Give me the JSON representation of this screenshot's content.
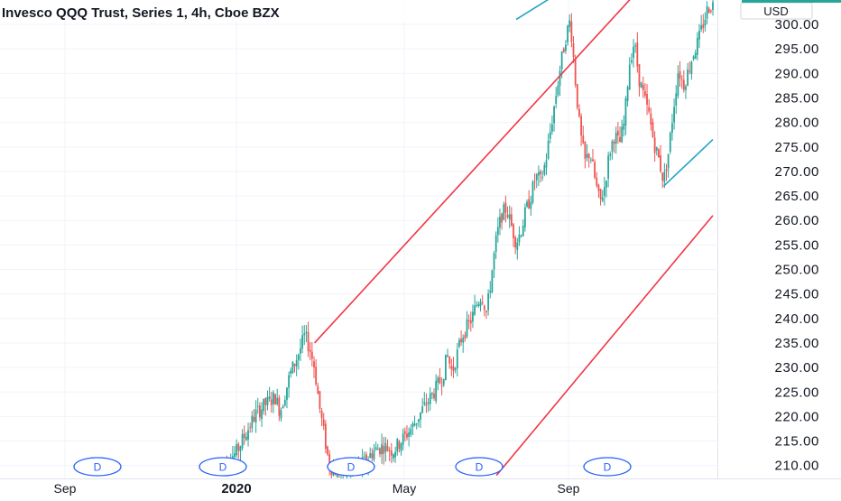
{
  "header": {
    "title": "Invesco QQQ Trust, Series 1, 4h, Cboe BZX"
  },
  "price_axis": {
    "currency_label": "USD",
    "tick_labels": [
      "300.00",
      "295.00",
      "290.00",
      "285.00",
      "280.00",
      "275.00",
      "270.00",
      "265.00",
      "260.00",
      "255.00",
      "250.00",
      "245.00",
      "240.00",
      "235.00",
      "230.00",
      "225.00",
      "220.00",
      "215.00",
      "210.00"
    ]
  },
  "time_axis": {
    "labels": [
      {
        "text": "Sep",
        "bold": false
      },
      {
        "text": "2020",
        "bold": true
      },
      {
        "text": "May",
        "bold": false
      },
      {
        "text": "Sep",
        "bold": false
      }
    ]
  },
  "event_markers": {
    "label": "D",
    "count": 5
  },
  "colors": {
    "up": "#26a69a",
    "down": "#ef5350",
    "channel_red": "#f23645",
    "channel_teal": "#22a4c4",
    "grid": "#f0f3fa",
    "marker": "#2962ff",
    "text": "#131722"
  },
  "chart_data": {
    "type": "candlestick",
    "title": "Invesco QQQ Trust, Series 1, 4h, Cboe BZX",
    "ylabel": "USD",
    "ylim": [
      207.5,
      305
    ],
    "grid": true,
    "x_ticks": [
      "Sep",
      "2020",
      "May",
      "Sep"
    ],
    "y_ticks": [
      300,
      295,
      290,
      285,
      280,
      275,
      270,
      265,
      260,
      255,
      250,
      245,
      240,
      235,
      230,
      225,
      220,
      215,
      210
    ],
    "price_path": [
      [
        0.0,
        210.5
      ],
      [
        0.03,
        212.5
      ],
      [
        0.05,
        216.5
      ],
      [
        0.07,
        220.5
      ],
      [
        0.09,
        222.5
      ],
      [
        0.11,
        224.0
      ],
      [
        0.12,
        221.0
      ],
      [
        0.14,
        228.5
      ],
      [
        0.16,
        233.5
      ],
      [
        0.17,
        236.5
      ],
      [
        0.18,
        234.0
      ],
      [
        0.19,
        230.0
      ],
      [
        0.2,
        222.0
      ],
      [
        0.21,
        216.0
      ],
      [
        0.22,
        210.0
      ],
      [
        0.23,
        209.0
      ],
      [
        0.25,
        208.5
      ],
      [
        0.27,
        209.5
      ],
      [
        0.29,
        210.5
      ],
      [
        0.31,
        213.0
      ],
      [
        0.33,
        214.0
      ],
      [
        0.35,
        213.0
      ],
      [
        0.37,
        215.5
      ],
      [
        0.39,
        218.0
      ],
      [
        0.41,
        221.5
      ],
      [
        0.43,
        224.5
      ],
      [
        0.45,
        228.0
      ],
      [
        0.46,
        232.5
      ],
      [
        0.47,
        229.0
      ],
      [
        0.49,
        236.5
      ],
      [
        0.51,
        240.0
      ],
      [
        0.52,
        243.0
      ],
      [
        0.53,
        245.0
      ],
      [
        0.54,
        241.0
      ],
      [
        0.55,
        249.0
      ],
      [
        0.56,
        256.5
      ],
      [
        0.57,
        261.0
      ],
      [
        0.58,
        262.5
      ],
      [
        0.59,
        259.0
      ],
      [
        0.6,
        255.5
      ],
      [
        0.61,
        258.0
      ],
      [
        0.62,
        262.0
      ],
      [
        0.63,
        265.0
      ],
      [
        0.64,
        269.0
      ],
      [
        0.65,
        268.0
      ],
      [
        0.66,
        272.0
      ],
      [
        0.67,
        278.5
      ],
      [
        0.68,
        285.0
      ],
      [
        0.69,
        291.5
      ],
      [
        0.7,
        297.0
      ],
      [
        0.71,
        301.0
      ],
      [
        0.72,
        289.0
      ],
      [
        0.73,
        278.0
      ],
      [
        0.74,
        272.0
      ],
      [
        0.75,
        274.0
      ],
      [
        0.76,
        268.5
      ],
      [
        0.77,
        263.5
      ],
      [
        0.78,
        267.0
      ],
      [
        0.79,
        274.0
      ],
      [
        0.8,
        277.5
      ],
      [
        0.81,
        275.5
      ],
      [
        0.82,
        280.0
      ],
      [
        0.83,
        292.0
      ],
      [
        0.84,
        296.5
      ],
      [
        0.85,
        289.0
      ],
      [
        0.86,
        285.0
      ],
      [
        0.87,
        281.5
      ],
      [
        0.88,
        276.0
      ],
      [
        0.89,
        272.5
      ],
      [
        0.9,
        268.0
      ],
      [
        0.91,
        274.0
      ],
      [
        0.92,
        283.0
      ],
      [
        0.93,
        291.0
      ],
      [
        0.94,
        287.5
      ],
      [
        0.95,
        290.5
      ],
      [
        0.96,
        294.0
      ],
      [
        0.97,
        296.5
      ],
      [
        0.98,
        300.0
      ],
      [
        0.99,
        303.5
      ],
      [
        1.0,
        304.0
      ]
    ],
    "trend_lines": [
      {
        "color": "red",
        "from": [
          0.19,
          235.0
        ],
        "to": [
          0.84,
          306.0
        ]
      },
      {
        "color": "red",
        "from": [
          0.56,
          208.0
        ],
        "to": [
          1.0,
          261.0
        ]
      },
      {
        "color": "teal",
        "from": [
          0.6,
          301.0
        ],
        "to": [
          0.68,
          306.0
        ]
      },
      {
        "color": "teal",
        "from": [
          0.9,
          267.0
        ],
        "to": [
          1.0,
          276.5
        ]
      }
    ]
  }
}
